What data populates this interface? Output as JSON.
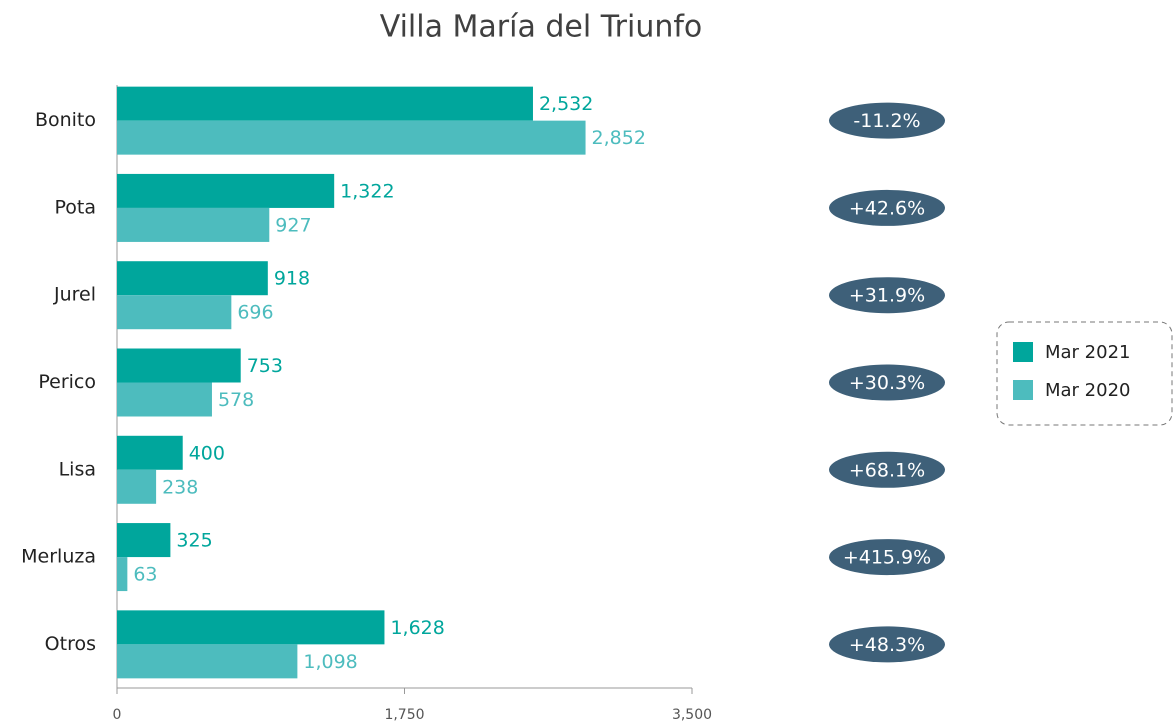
{
  "chart_data": {
    "type": "bar",
    "orientation": "horizontal",
    "title": "Villa María del Triunfo",
    "categories": [
      "Bonito",
      "Pota",
      "Jurel",
      "Perico",
      "Lisa",
      "Merluza",
      "Otros"
    ],
    "series": [
      {
        "name": "Mar 2021",
        "color": "#00a69c",
        "values": [
          2532,
          1322,
          918,
          753,
          400,
          325,
          1628
        ],
        "value_labels": [
          "2,532",
          "1,322",
          "918",
          "753",
          "400",
          "325",
          "1,628"
        ]
      },
      {
        "name": "Mar 2020",
        "color": "#4dbcbe",
        "values": [
          2852,
          927,
          696,
          578,
          238,
          63,
          1098
        ],
        "value_labels": [
          "2,852",
          "927",
          "696",
          "578",
          "238",
          "63",
          "1,098"
        ]
      }
    ],
    "annotations": [
      "-11.2%",
      "+42.6%",
      "+31.9%",
      "+30.3%",
      "+68.1%",
      "+415.9%",
      "+48.3%"
    ],
    "annotation_color": "#3e6079",
    "xlim": [
      0,
      3500
    ],
    "xticks": [
      0,
      {
        "value": 1750,
        "label": "1,750"
      },
      {
        "value": 3500,
        "label": "3,500"
      }
    ],
    "legend": "right"
  }
}
